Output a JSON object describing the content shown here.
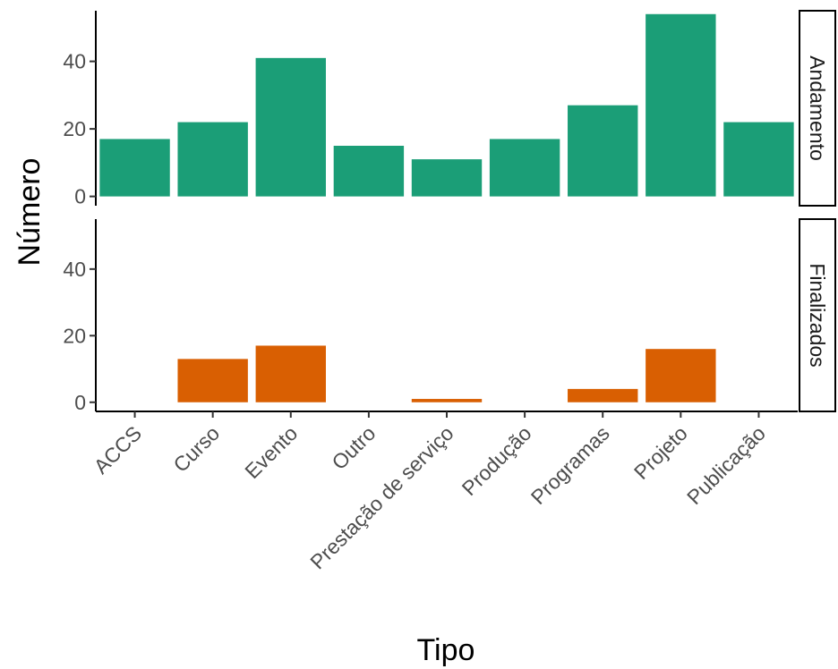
{
  "chart_data": {
    "type": "bar",
    "xlabel": "Tipo",
    "ylabel": "Número",
    "categories": [
      "ACCS",
      "Curso",
      "Evento",
      "Outro",
      "Prestação de serviço",
      "Produção",
      "Programas",
      "Projeto",
      "Publicação"
    ],
    "ylim": [
      0,
      55
    ],
    "yticks": [
      0,
      20,
      40
    ],
    "grid": false,
    "legend": "none",
    "facets": [
      {
        "name": "Andamento",
        "color": "#1b9e77",
        "values": [
          17,
          22,
          41,
          15,
          11,
          17,
          27,
          54,
          22
        ]
      },
      {
        "name": "Finalizados",
        "color": "#d95f02",
        "values": [
          0,
          13,
          17,
          0,
          1,
          0,
          4,
          16,
          0
        ]
      }
    ]
  }
}
